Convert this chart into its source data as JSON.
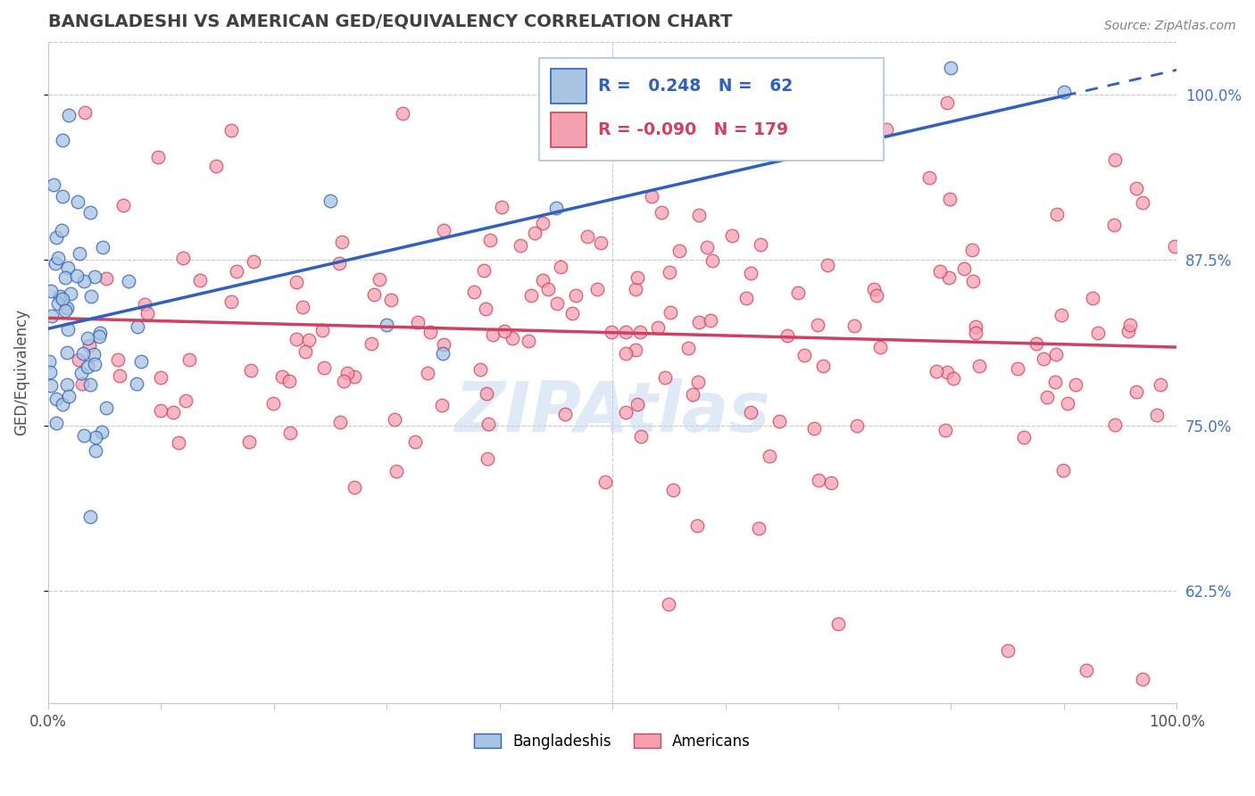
{
  "title": "BANGLADESHI VS AMERICAN GED/EQUIVALENCY CORRELATION CHART",
  "source": "Source: ZipAtlas.com",
  "ylabel": "GED/Equivalency",
  "watermark": "ZIPAtlas",
  "bangladeshi_r": 0.248,
  "bangladeshi_n": 62,
  "american_r": -0.09,
  "american_n": 179,
  "yticks": [
    0.625,
    0.75,
    0.875,
    1.0
  ],
  "ytick_labels": [
    "62.5%",
    "75.0%",
    "87.5%",
    "100.0%"
  ],
  "xlim": [
    0.0,
    1.0
  ],
  "ylim": [
    0.54,
    1.04
  ],
  "bangladeshi_color": "#a8c4e0",
  "american_color": "#f4a0b0",
  "blue_line_color": "#3060c0",
  "pink_line_color": "#d04060",
  "grid_color": "#c8c8c8",
  "title_color": "#404040",
  "axis_label_color": "#505050",
  "right_label_color": "#4472c4",
  "source_color": "#808080",
  "watermark_color": "#c8d8f0",
  "legend_box_color": "#e0eaf4",
  "legend_border_color": "#b0c4de"
}
